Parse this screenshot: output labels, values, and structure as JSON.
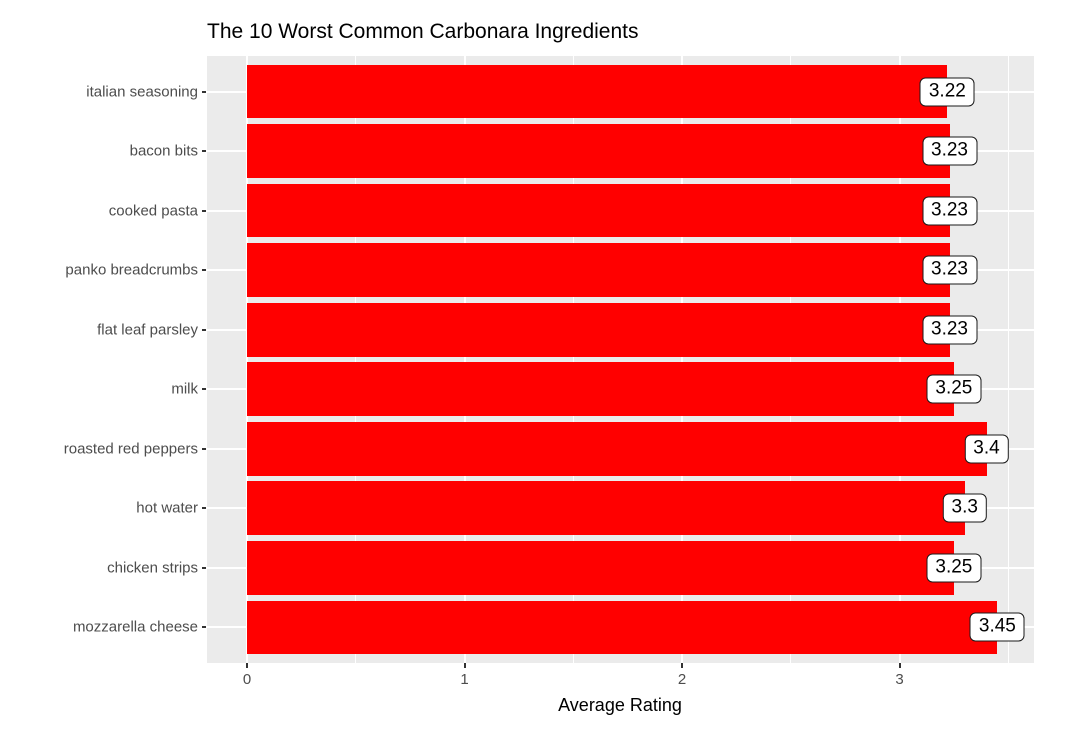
{
  "chart_data": {
    "type": "bar",
    "orientation": "horizontal",
    "title": "The 10 Worst Common Carbonara Ingredients",
    "xlabel": "Average Rating",
    "ylabel": "",
    "categories": [
      "italian seasoning",
      "bacon bits",
      "cooked pasta",
      "panko breadcrumbs",
      "flat leaf parsley",
      "milk",
      "roasted red peppers",
      "hot water",
      "chicken strips",
      "mozzarella cheese"
    ],
    "values": [
      3.22,
      3.23,
      3.23,
      3.23,
      3.23,
      3.25,
      3.4,
      3.3,
      3.25,
      3.45
    ],
    "value_labels": [
      "3.22",
      "3.23",
      "3.23",
      "3.23",
      "3.23",
      "3.25",
      "3.4",
      "3.3",
      "3.25",
      "3.45"
    ],
    "xticks": [
      0,
      1,
      2,
      3
    ],
    "xtick_labels": [
      "0",
      "1",
      "2",
      "3"
    ],
    "xlim": [
      -0.18,
      3.62
    ],
    "grid": "on",
    "legend_position": "none",
    "colors": {
      "bar_fill": "#FF0000",
      "panel_background": "#EBEBEB",
      "gridline": "#FFFFFF",
      "axis_text": "#4D4D4D",
      "tick_mark": "#333333",
      "title_text": "#000000",
      "label_box_fill": "#FFFFFF",
      "label_box_border": "#1a1a1a",
      "label_text": "#000000"
    }
  }
}
